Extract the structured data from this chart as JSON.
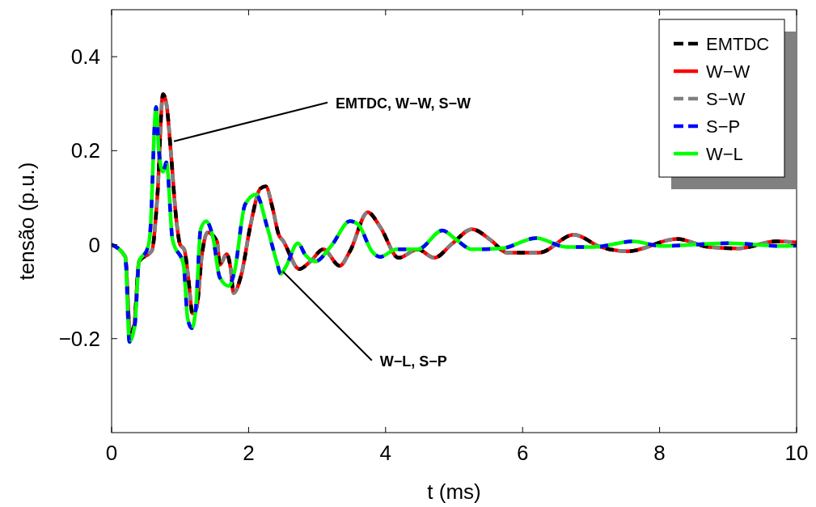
{
  "chart_data": {
    "type": "line",
    "xlabel": "t (ms)",
    "ylabel": "tensão (p.u.)",
    "xlim": [
      0,
      10
    ],
    "xticks": [
      0,
      2,
      4,
      6,
      8,
      10
    ],
    "ylim": [
      -0.4,
      0.5
    ],
    "yticks": [
      {
        "value": -0.2,
        "label": "−0.2"
      },
      0,
      0.2,
      0.4
    ],
    "grid": false,
    "legend": "top right",
    "annotations": [
      {
        "text": "EMTDC, W−W, S−W",
        "x": 0.91,
        "y": 0.22
      },
      {
        "text": "W−L, S−P",
        "x": 2.5,
        "y": -0.057
      }
    ],
    "series": [
      {
        "name": "EMTDC",
        "color": "#000000",
        "line_style": "dashed",
        "x": [
          0,
          0.2,
          0.27,
          0.33,
          0.4,
          0.59,
          0.67,
          0.75,
          0.8,
          0.87,
          0.94,
          1.0,
          1.06,
          1.12,
          1.18,
          1.24,
          1.32,
          1.4,
          1.54,
          1.58,
          1.68,
          1.74,
          1.78,
          1.89,
          2.03,
          2.17,
          2.25,
          2.35,
          2.44,
          2.5,
          2.74,
          2.9,
          3.09,
          3.33,
          3.48,
          3.74,
          3.92,
          4.19,
          4.47,
          4.71,
          4.98,
          5.26,
          5.54,
          5.77,
          6.24,
          6.75,
          7.14,
          7.54,
          8.25,
          8.72,
          9.15,
          9.7,
          10
        ],
        "values": [
          0,
          -0.026,
          -0.19,
          -0.17,
          -0.036,
          -0.012,
          0.107,
          0.32,
          0.3,
          0.188,
          0.06,
          0.0,
          -0.01,
          -0.07,
          -0.146,
          -0.135,
          -0.02,
          0.026,
          0.007,
          -0.043,
          -0.02,
          -0.053,
          -0.103,
          -0.066,
          0.043,
          0.119,
          0.124,
          0.078,
          0.021,
          0.009,
          -0.052,
          -0.036,
          -0.01,
          -0.045,
          -0.014,
          0.069,
          0.038,
          -0.028,
          -0.01,
          -0.028,
          0.003,
          0.033,
          0.009,
          -0.017,
          -0.017,
          0.021,
          -0.005,
          -0.014,
          0.012,
          -0.005,
          -0.008,
          0.007,
          0.005
        ]
      },
      {
        "name": "W−W",
        "color": "#ff0000",
        "line_style": "solid",
        "x": [
          0,
          0.2,
          0.27,
          0.33,
          0.4,
          0.59,
          0.67,
          0.75,
          0.8,
          0.87,
          0.94,
          1.0,
          1.06,
          1.12,
          1.18,
          1.24,
          1.32,
          1.4,
          1.54,
          1.58,
          1.68,
          1.74,
          1.78,
          1.89,
          2.03,
          2.17,
          2.25,
          2.35,
          2.44,
          2.5,
          2.74,
          2.9,
          3.09,
          3.33,
          3.48,
          3.74,
          3.92,
          4.19,
          4.47,
          4.71,
          4.98,
          5.26,
          5.54,
          5.77,
          6.24,
          6.75,
          7.14,
          7.54,
          8.25,
          8.72,
          9.15,
          9.7,
          10
        ],
        "values": [
          0,
          -0.026,
          -0.19,
          -0.17,
          -0.036,
          -0.012,
          0.107,
          0.32,
          0.3,
          0.188,
          0.06,
          0.0,
          -0.01,
          -0.07,
          -0.146,
          -0.135,
          -0.02,
          0.026,
          0.007,
          -0.043,
          -0.02,
          -0.053,
          -0.103,
          -0.066,
          0.043,
          0.119,
          0.124,
          0.078,
          0.021,
          0.009,
          -0.052,
          -0.036,
          -0.01,
          -0.045,
          -0.014,
          0.069,
          0.038,
          -0.028,
          -0.01,
          -0.028,
          0.003,
          0.033,
          0.009,
          -0.017,
          -0.017,
          0.021,
          -0.005,
          -0.014,
          0.012,
          -0.005,
          -0.008,
          0.007,
          0.005
        ]
      },
      {
        "name": "S−W",
        "color": "#808080",
        "line_style": "dashed",
        "x": [
          0,
          0.2,
          0.27,
          0.33,
          0.4,
          0.59,
          0.67,
          0.75,
          0.8,
          0.87,
          0.94,
          1.0,
          1.06,
          1.12,
          1.18,
          1.24,
          1.32,
          1.4,
          1.54,
          1.58,
          1.68,
          1.74,
          1.78,
          1.89,
          2.03,
          2.17,
          2.25,
          2.35,
          2.44,
          2.5,
          2.74,
          2.9,
          3.09,
          3.33,
          3.48,
          3.74,
          3.92,
          4.19,
          4.47,
          4.71,
          4.98,
          5.26,
          5.54,
          5.77,
          6.24,
          6.75,
          7.14,
          7.54,
          8.25,
          8.72,
          9.15,
          9.7,
          10
        ],
        "values": [
          0,
          -0.026,
          -0.19,
          -0.17,
          -0.036,
          -0.012,
          0.107,
          0.32,
          0.3,
          0.188,
          0.06,
          0.0,
          -0.01,
          -0.07,
          -0.146,
          -0.135,
          -0.02,
          0.026,
          0.007,
          -0.043,
          -0.02,
          -0.053,
          -0.103,
          -0.066,
          0.043,
          0.119,
          0.124,
          0.078,
          0.021,
          0.009,
          -0.052,
          -0.036,
          -0.01,
          -0.045,
          -0.014,
          0.069,
          0.038,
          -0.028,
          -0.01,
          -0.028,
          0.003,
          0.033,
          0.009,
          -0.017,
          -0.017,
          0.021,
          -0.005,
          -0.014,
          0.012,
          -0.005,
          -0.008,
          0.007,
          0.005
        ]
      },
      {
        "name": "S−P",
        "color": "#0000ff",
        "line_style": "dashed",
        "x": [
          0,
          0.2,
          0.26,
          0.34,
          0.4,
          0.52,
          0.56,
          0.65,
          0.69,
          0.75,
          0.8,
          0.89,
          1.05,
          1.11,
          1.17,
          1.23,
          1.3,
          1.38,
          1.48,
          1.58,
          1.71,
          1.79,
          1.95,
          2.11,
          2.27,
          2.41,
          2.47,
          2.54,
          2.72,
          2.83,
          2.97,
          3.21,
          3.48,
          3.6,
          3.8,
          3.92,
          4.16,
          4.47,
          4.83,
          5.02,
          5.26,
          5.69,
          6.2,
          6.64,
          7.03,
          7.62,
          8.02,
          9.0,
          9.79,
          10
        ],
        "values": [
          0,
          -0.026,
          -0.207,
          -0.17,
          -0.036,
          -0.01,
          0.02,
          0.293,
          0.2,
          0.155,
          0.175,
          0.01,
          -0.043,
          -0.157,
          -0.178,
          -0.135,
          0.033,
          0.05,
          0.015,
          -0.07,
          -0.088,
          -0.06,
          0.086,
          0.107,
          0.038,
          -0.036,
          -0.062,
          -0.048,
          0.003,
          -0.022,
          -0.036,
          -0.002,
          0.05,
          0.043,
          -0.014,
          -0.026,
          -0.01,
          -0.01,
          0.03,
          0.012,
          -0.01,
          -0.008,
          0.014,
          -0.005,
          -0.005,
          0.007,
          -0.003,
          0.003,
          -0.003,
          -0.002
        ]
      },
      {
        "name": "W−L",
        "color": "#00ff00",
        "line_style": "solid",
        "x": [
          0,
          0.2,
          0.26,
          0.34,
          0.4,
          0.52,
          0.56,
          0.65,
          0.69,
          0.75,
          0.8,
          0.89,
          1.05,
          1.11,
          1.17,
          1.23,
          1.3,
          1.38,
          1.48,
          1.58,
          1.71,
          1.79,
          1.95,
          2.11,
          2.27,
          2.41,
          2.47,
          2.54,
          2.72,
          2.83,
          2.97,
          3.21,
          3.48,
          3.6,
          3.8,
          3.92,
          4.16,
          4.47,
          4.83,
          5.02,
          5.26,
          5.69,
          6.2,
          6.64,
          7.03,
          7.62,
          8.02,
          9.0,
          9.79,
          10
        ],
        "values": [
          0,
          -0.026,
          -0.207,
          -0.17,
          -0.036,
          -0.01,
          0.02,
          0.293,
          0.2,
          0.155,
          0.175,
          0.01,
          -0.043,
          -0.157,
          -0.178,
          -0.135,
          0.033,
          0.05,
          0.015,
          -0.07,
          -0.088,
          -0.06,
          0.086,
          0.107,
          0.038,
          -0.036,
          -0.062,
          -0.048,
          0.003,
          -0.022,
          -0.036,
          -0.002,
          0.05,
          0.043,
          -0.014,
          -0.026,
          -0.01,
          -0.01,
          0.03,
          0.012,
          -0.01,
          -0.008,
          0.014,
          -0.005,
          -0.005,
          0.007,
          -0.003,
          0.003,
          -0.003,
          -0.002
        ]
      }
    ]
  }
}
